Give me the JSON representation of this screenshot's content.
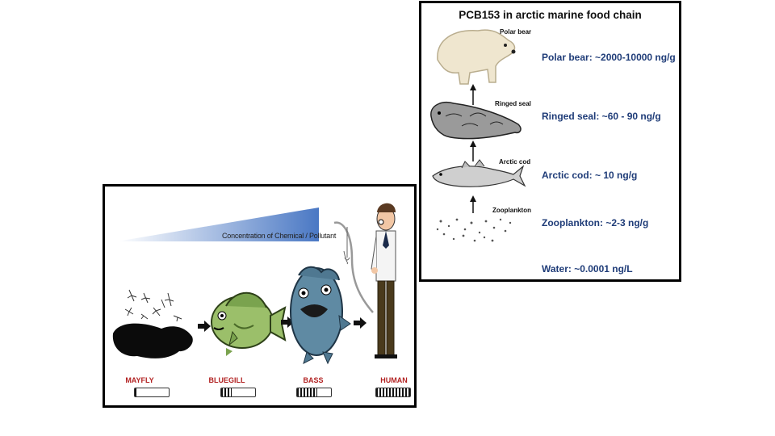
{
  "food_web": {
    "wedge_label": "Concentration of Chemical / Pollutant",
    "organisms": [
      {
        "label": "MAYFLY",
        "level": 0.1
      },
      {
        "label": "BLUEGILL",
        "level": 0.3
      },
      {
        "label": "BASS",
        "level": 0.6
      },
      {
        "label": "HUMAN",
        "level": 1.0
      }
    ]
  },
  "arctic_chain": {
    "title": "PCB153 in arctic marine food chain",
    "animals": [
      {
        "label": "Polar bear"
      },
      {
        "label": "Ringed seal"
      },
      {
        "label": "Arctic cod"
      },
      {
        "label": "Zooplankton"
      }
    ],
    "concentrations": [
      "Polar bear: ~2000-10000 ng/g",
      "Ringed seal: ~60 - 90 ng/g",
      "Arctic cod: ~ 10 ng/g",
      "Zooplankton: ~2-3 ng/g",
      "Water:  ~0.0001 ng/L"
    ]
  }
}
